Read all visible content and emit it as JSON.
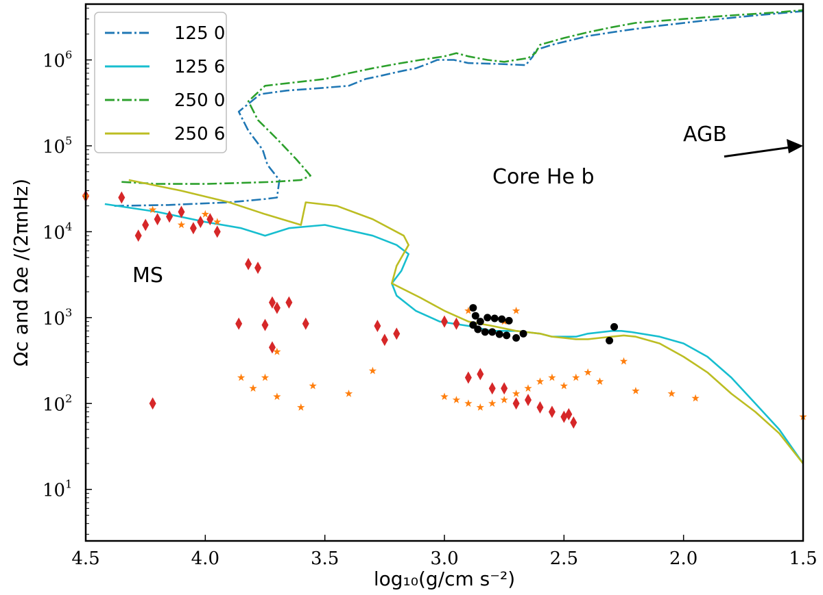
{
  "chart_data": {
    "type": "line",
    "xlabel": "log₁₀(g/cm s⁻²)",
    "ylabel": "Ωc and Ωe /(2πnHz)",
    "xlim": [
      4.5,
      1.5
    ],
    "ylim_log10": [
      0.4,
      6.65
    ],
    "y_scale": "log",
    "x_ticks": [
      "4.5",
      "4.0",
      "3.5",
      "3.0",
      "2.5",
      "2.0",
      "1.5"
    ],
    "y_ticks": [
      {
        "base": "10",
        "exp": "1",
        "value": 10
      },
      {
        "base": "10",
        "exp": "2",
        "value": 100
      },
      {
        "base": "10",
        "exp": "3",
        "value": 1000
      },
      {
        "base": "10",
        "exp": "4",
        "value": 10000
      },
      {
        "base": "10",
        "exp": "5",
        "value": 100000
      },
      {
        "base": "10",
        "exp": "6",
        "value": 1000000
      }
    ],
    "legend_position": "top-left",
    "annotations": [
      {
        "text": "MS",
        "x": 4.27,
        "y": 2600
      },
      {
        "text": "Core He b",
        "x": 2.87,
        "y": 38000
      },
      {
        "text": "AGB",
        "x": 1.93,
        "y": 120000
      }
    ],
    "series": [
      {
        "name": "125 0",
        "color": "#1f77b4",
        "style": "dashdot",
        "x": [
          4.38,
          4.15,
          3.9,
          3.75,
          3.7,
          3.69,
          3.74,
          3.76,
          3.82,
          3.86,
          3.77,
          3.66,
          3.52,
          3.4,
          3.33,
          3.27,
          3.22,
          3.17,
          3.12,
          3.07,
          3.03,
          2.96,
          2.9,
          2.78,
          2.7,
          2.66,
          2.63,
          2.62,
          2.55,
          2.4,
          2.25,
          2.1,
          1.9,
          1.7,
          1.5
        ],
        "y": [
          20000,
          20500,
          22000,
          24000,
          25000,
          40000,
          60000,
          90000,
          150000,
          250000,
          400000,
          440000,
          470000,
          500000,
          600000,
          650000,
          700000,
          750000,
          800000,
          900000,
          1000000,
          1000000,
          920000,
          900000,
          880000,
          870000,
          1100000,
          1300000,
          1500000,
          1900000,
          2200000,
          2500000,
          2900000,
          3300000,
          3700000
        ]
      },
      {
        "name": "125 6",
        "color": "#17becf",
        "style": "solid",
        "x": [
          4.42,
          4.2,
          4.0,
          3.85,
          3.75,
          3.65,
          3.5,
          3.3,
          3.2,
          3.15,
          3.18,
          3.22,
          3.2,
          3.12,
          3.02,
          2.9,
          2.8,
          2.7,
          2.6,
          2.55,
          2.5,
          2.45,
          2.4,
          2.3,
          2.26,
          2.22,
          2.1,
          2.0,
          1.9,
          1.8,
          1.7,
          1.6,
          1.5
        ],
        "y": [
          21000,
          17000,
          13000,
          11000,
          9000,
          11000,
          12000,
          9000,
          7000,
          5500,
          3500,
          2500,
          1800,
          1200,
          900,
          800,
          700,
          700,
          650,
          600,
          600,
          600,
          650,
          700,
          700,
          680,
          600,
          500,
          350,
          200,
          100,
          50,
          20
        ]
      },
      {
        "name": "250 0",
        "color": "#2ca02c",
        "style": "dashdot",
        "x": [
          4.35,
          4.2,
          4.0,
          3.85,
          3.72,
          3.6,
          3.56,
          3.62,
          3.7,
          3.78,
          3.82,
          3.75,
          3.62,
          3.5,
          3.4,
          3.3,
          3.2,
          3.1,
          3.0,
          2.95,
          2.9,
          2.82,
          2.75,
          2.7,
          2.65,
          2.62,
          2.6,
          2.5,
          2.4,
          2.3,
          2.2,
          2.0,
          1.8,
          1.6,
          1.5
        ],
        "y": [
          38000,
          36000,
          36000,
          37000,
          38000,
          40000,
          45000,
          70000,
          120000,
          200000,
          330000,
          500000,
          550000,
          600000,
          700000,
          800000,
          900000,
          1000000,
          1100000,
          1200000,
          1100000,
          1000000,
          950000,
          1000000,
          1050000,
          1200000,
          1500000,
          1800000,
          2100000,
          2400000,
          2700000,
          3000000,
          3300000,
          3600000,
          3800000
        ]
      },
      {
        "name": "250 6",
        "color": "#bcbd22",
        "style": "solid",
        "x": [
          4.32,
          4.1,
          3.9,
          3.75,
          3.6,
          3.58,
          3.45,
          3.3,
          3.17,
          3.15,
          3.2,
          3.22,
          3.1,
          3.0,
          2.9,
          2.8,
          2.7,
          2.6,
          2.55,
          2.5,
          2.45,
          2.4,
          2.35,
          2.3,
          2.25,
          2.2,
          2.1,
          2.0,
          1.9,
          1.8,
          1.7,
          1.6,
          1.5
        ],
        "y": [
          40000,
          30000,
          22000,
          16000,
          12000,
          22000,
          20000,
          14000,
          9000,
          7000,
          4000,
          2500,
          1700,
          1200,
          900,
          800,
          700,
          650,
          600,
          580,
          560,
          560,
          580,
          600,
          620,
          600,
          500,
          350,
          230,
          130,
          80,
          45,
          20
        ]
      }
    ],
    "points": [
      {
        "name": "diamond",
        "color": "#d62728",
        "pts": [
          [
            4.5,
            26000
          ],
          [
            4.35,
            25000
          ],
          [
            4.28,
            9000
          ],
          [
            4.25,
            12000
          ],
          [
            4.2,
            14000
          ],
          [
            4.15,
            15000
          ],
          [
            4.1,
            17000
          ],
          [
            4.05,
            11000
          ],
          [
            4.02,
            13000
          ],
          [
            3.98,
            14000
          ],
          [
            3.95,
            10000
          ],
          [
            3.82,
            4200
          ],
          [
            3.78,
            3800
          ],
          [
            3.72,
            1500
          ],
          [
            3.7,
            1300
          ],
          [
            3.65,
            1500
          ],
          [
            3.58,
            850
          ],
          [
            3.86,
            850
          ],
          [
            3.75,
            820
          ],
          [
            3.72,
            450
          ],
          [
            4.22,
            100
          ],
          [
            3.28,
            800
          ],
          [
            3.25,
            550
          ],
          [
            3.2,
            650
          ],
          [
            3.0,
            900
          ],
          [
            2.95,
            850
          ],
          [
            2.9,
            200
          ],
          [
            2.85,
            220
          ],
          [
            2.8,
            150
          ],
          [
            2.75,
            150
          ],
          [
            2.7,
            100
          ],
          [
            2.65,
            110
          ],
          [
            2.6,
            90
          ],
          [
            2.55,
            80
          ],
          [
            2.5,
            70
          ],
          [
            2.48,
            75
          ],
          [
            2.46,
            60
          ]
        ]
      },
      {
        "name": "star",
        "color": "#ff7f0e",
        "pts": [
          [
            4.5,
            26000
          ],
          [
            4.22,
            18000
          ],
          [
            4.1,
            12000
          ],
          [
            4.0,
            16000
          ],
          [
            3.95,
            13000
          ],
          [
            3.7,
            400
          ],
          [
            3.85,
            200
          ],
          [
            3.8,
            150
          ],
          [
            3.75,
            200
          ],
          [
            3.7,
            120
          ],
          [
            3.6,
            90
          ],
          [
            3.55,
            160
          ],
          [
            3.4,
            130
          ],
          [
            3.3,
            240
          ],
          [
            3.0,
            120
          ],
          [
            2.95,
            110
          ],
          [
            2.9,
            100
          ],
          [
            2.85,
            90
          ],
          [
            2.8,
            100
          ],
          [
            2.75,
            110
          ],
          [
            2.7,
            130
          ],
          [
            2.65,
            150
          ],
          [
            2.6,
            180
          ],
          [
            2.55,
            200
          ],
          [
            2.5,
            160
          ],
          [
            2.45,
            200
          ],
          [
            2.4,
            230
          ],
          [
            2.35,
            180
          ],
          [
            2.25,
            310
          ],
          [
            2.2,
            140
          ],
          [
            2.05,
            130
          ],
          [
            1.95,
            115
          ],
          [
            1.5,
            70
          ],
          [
            2.9,
            1200
          ],
          [
            2.7,
            1200
          ],
          [
            2.75,
            900
          ]
        ]
      },
      {
        "name": "dot",
        "color": "#000000",
        "pts": [
          [
            2.88,
            1300
          ],
          [
            2.87,
            1050
          ],
          [
            2.85,
            900
          ],
          [
            2.82,
            1000
          ],
          [
            2.79,
            980
          ],
          [
            2.76,
            960
          ],
          [
            2.73,
            920
          ],
          [
            2.88,
            820
          ],
          [
            2.86,
            730
          ],
          [
            2.83,
            680
          ],
          [
            2.8,
            680
          ],
          [
            2.77,
            640
          ],
          [
            2.74,
            620
          ],
          [
            2.7,
            580
          ],
          [
            2.67,
            650
          ],
          [
            2.29,
            780
          ],
          [
            2.31,
            540
          ]
        ]
      }
    ],
    "arrow": {
      "from": [
        1.83,
        75000
      ],
      "to": [
        1.5,
        100000
      ]
    }
  }
}
